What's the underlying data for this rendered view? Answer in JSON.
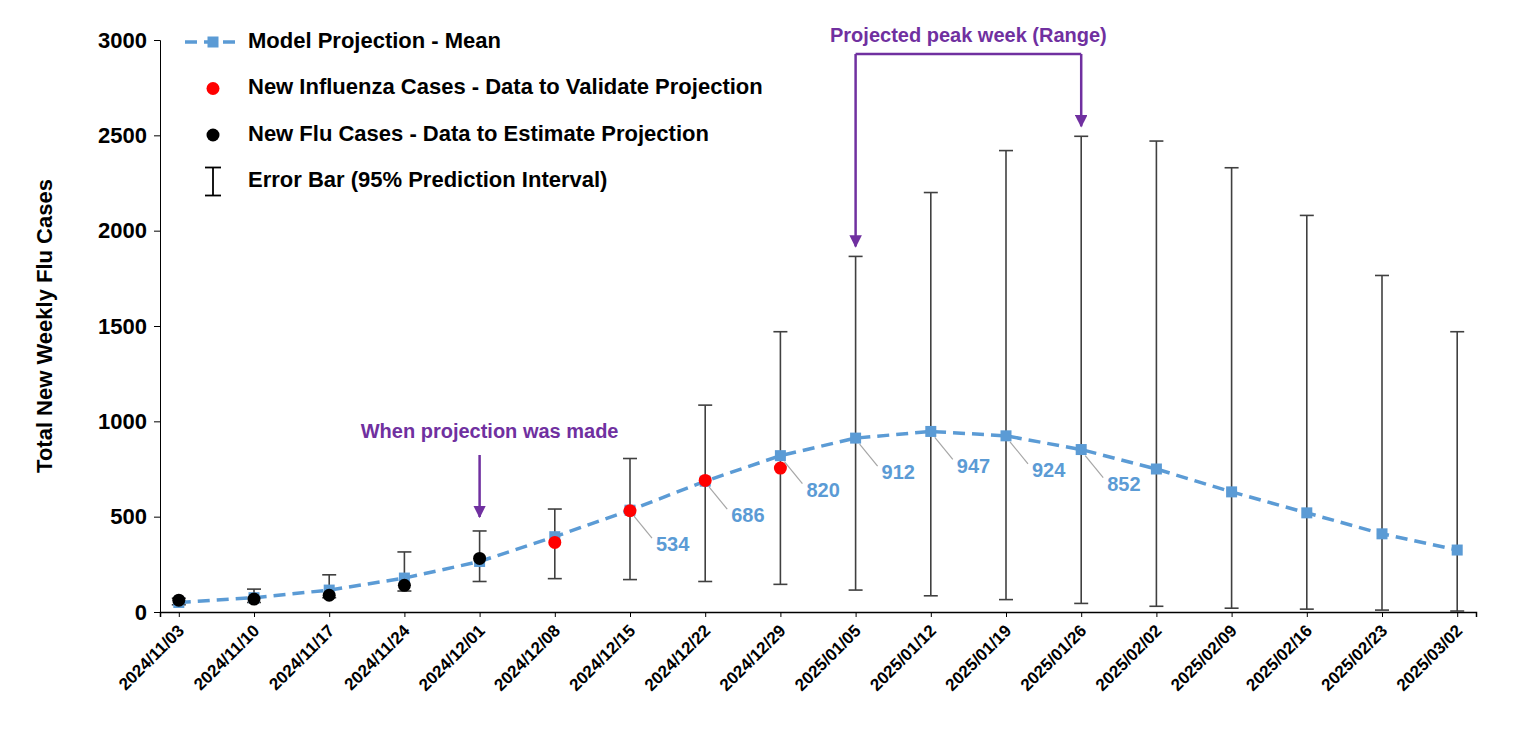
{
  "chart_data": {
    "type": "line",
    "ylabel": "Total New Weekly Flu Cases",
    "categories": [
      "2024/11/03",
      "2024/11/10",
      "2024/11/17",
      "2024/11/24",
      "2024/12/01",
      "2024/12/08",
      "2024/12/15",
      "2024/12/22",
      "2024/12/29",
      "2025/01/05",
      "2025/01/12",
      "2025/01/19",
      "2025/01/26",
      "2025/02/02",
      "2025/02/09",
      "2025/02/16",
      "2025/02/23",
      "2025/03/02"
    ],
    "series": [
      {
        "name": "Model Projection - Mean",
        "type": "line",
        "color": "#5B9BD5",
        "marker": "square",
        "line_style": "dashed",
        "values": [
          50,
          75,
          115,
          178,
          265,
          395,
          534,
          686,
          820,
          912,
          947,
          924,
          852,
          750,
          630,
          520,
          410,
          325
        ],
        "value_labels": [
          null,
          null,
          null,
          null,
          null,
          null,
          "534",
          "686",
          "820",
          "912",
          "947",
          "924",
          "852",
          null,
          null,
          null,
          null,
          null
        ]
      },
      {
        "name": "New Influenza Cases - Data to Validate Projection",
        "type": "scatter",
        "color": "#FF0000",
        "marker": "circle",
        "values": [
          null,
          null,
          null,
          null,
          null,
          365,
          531,
          690,
          755,
          null,
          null,
          null,
          null,
          null,
          null,
          null,
          null,
          null
        ]
      },
      {
        "name": "New Flu Cases - Data to Estimate Projection",
        "type": "scatter",
        "color": "#000000",
        "marker": "circle",
        "values": [
          62,
          68,
          88,
          140,
          281,
          null,
          null,
          null,
          null,
          null,
          null,
          null,
          null,
          null,
          null,
          null,
          null,
          null
        ]
      },
      {
        "name": "Error Bar (95% Prediction Interval)",
        "type": "errorbar",
        "color": "#404040",
        "lower": [
          38,
          50,
          75,
          110,
          160,
          175,
          170,
          160,
          145,
          115,
          85,
          65,
          45,
          30,
          20,
          15,
          10,
          5
        ],
        "upper": [
          72,
          120,
          195,
          315,
          425,
          540,
          805,
          1085,
          1470,
          1865,
          2200,
          2420,
          2495,
          2470,
          2330,
          2080,
          1765,
          1470
        ]
      }
    ],
    "annotations": [
      {
        "text": "When projection was made",
        "x": "2024/12/01"
      },
      {
        "text": "Projected peak week (Range)",
        "x": [
          "2025/01/05",
          "2025/01/26"
        ]
      }
    ],
    "ylim": [
      0,
      3000
    ],
    "yticks": [
      0,
      500,
      1000,
      1500,
      2000,
      2500,
      3000
    ],
    "grid": false,
    "legend": "top-left",
    "data_labels": true
  }
}
